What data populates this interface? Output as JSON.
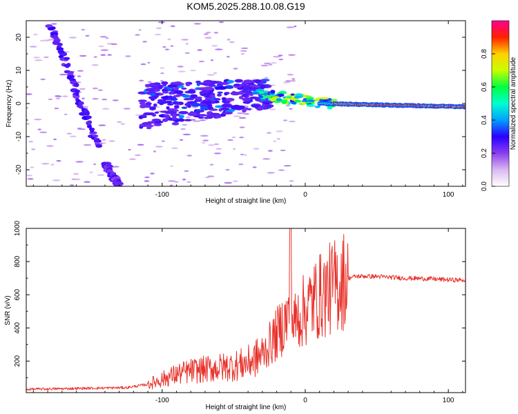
{
  "title": "KOM5.2025.288.10.08.G19",
  "chart_data": [
    {
      "type": "heatmap",
      "name": "spectrogram",
      "xlabel": "Height of straight line (km)",
      "ylabel": "Frequency (Hz)",
      "xlim": [
        -195,
        112
      ],
      "ylim": [
        -25,
        25
      ],
      "xticks": [
        -100,
        0,
        100
      ],
      "xtick_labels": [
        "-100",
        "0",
        "100"
      ],
      "yticks": [
        20,
        10,
        0,
        -10,
        -20
      ],
      "ytick_labels": [
        "20",
        "10",
        "0",
        "-10",
        "-20"
      ],
      "colorbar": {
        "label": "Normalized spectral amplitude",
        "range": [
          0,
          1
        ],
        "ticks": [
          0,
          0.2,
          0.4,
          0.6,
          0.8
        ],
        "tick_labels": [
          "0.0",
          "0.2",
          "0.4",
          "0.6",
          "0.8"
        ],
        "colors": [
          "#ffffff",
          "#d9b8f0",
          "#8a3df0",
          "#2a00ff",
          "#00a0ff",
          "#00ffd0",
          "#00ff40",
          "#c8ff00",
          "#ffd000",
          "#ff2000",
          "#ff0090"
        ]
      },
      "features": [
        {
          "label": "descending trace A",
          "x_start": -178,
          "f_start": 24,
          "x_end": -145,
          "f_end": -13,
          "amplitude": 0.2
        },
        {
          "label": "descending trace B",
          "x_start": -140,
          "f_start": -18,
          "x_end": -130,
          "f_end": -25,
          "amplitude": 0.18
        },
        {
          "label": "scattered cluster",
          "x_start": -115,
          "f_start": 0,
          "x_end": -25,
          "f_end": 4,
          "amplitude": 0.22
        },
        {
          "label": "central line",
          "x_start": -20,
          "f_start": 1,
          "x_end": 112,
          "f_end": -1,
          "amplitude": 0.95
        }
      ]
    },
    {
      "type": "line",
      "name": "snr",
      "xlabel": "Height of straight line (km)",
      "ylabel": "SNR (v/v)",
      "xlim": [
        -195,
        112
      ],
      "ylim": [
        10,
        1000
      ],
      "xticks": [
        -100,
        0,
        100
      ],
      "xtick_labels": [
        "-100",
        "0",
        "100"
      ],
      "yticks": [
        200,
        400,
        600,
        800,
        1000
      ],
      "ytick_labels": [
        "200",
        "400",
        "600",
        "800",
        "1000"
      ],
      "color": "#e8312a",
      "series": [
        {
          "name": "SNR",
          "x": [
            -195,
            -180,
            -160,
            -140,
            -125,
            -110,
            -100,
            -90,
            -80,
            -70,
            -60,
            -50,
            -40,
            -30,
            -25,
            -20,
            -15,
            -10,
            -8,
            -5,
            0,
            5,
            10,
            15,
            20,
            25,
            30,
            35,
            40,
            50,
            60,
            70,
            80,
            90,
            100,
            112
          ],
          "y": [
            30,
            32,
            35,
            38,
            40,
            60,
            90,
            120,
            140,
            150,
            160,
            170,
            190,
            240,
            300,
            360,
            430,
            480,
            420,
            470,
            510,
            560,
            590,
            620,
            650,
            680,
            700,
            710,
            712,
            710,
            705,
            700,
            698,
            695,
            690,
            688
          ]
        }
      ]
    }
  ]
}
